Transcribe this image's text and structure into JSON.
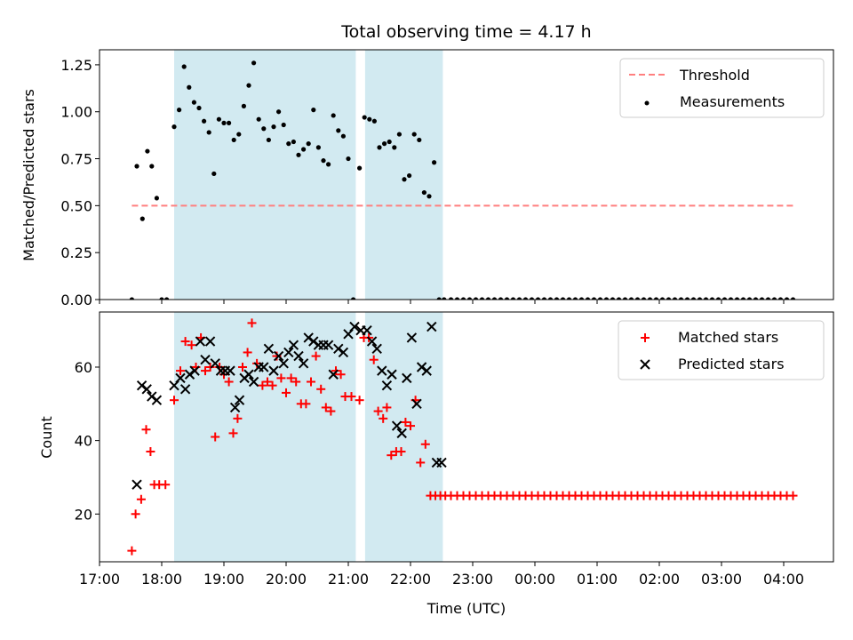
{
  "chart_data": {
    "title": "Total observing time = 4.17 h",
    "xlabel": "Time (UTC)",
    "x_ticks": [
      "17:00",
      "18:00",
      "19:00",
      "20:00",
      "21:00",
      "22:00",
      "23:00",
      "00:00",
      "01:00",
      "02:00",
      "03:00",
      "04:00"
    ],
    "x_range_hours": [
      17.0,
      28.8
    ],
    "shaded_intervals_hours": [
      [
        18.2,
        21.12
      ],
      [
        21.27,
        22.52
      ]
    ],
    "shade_color": "#add8e6",
    "panels": [
      {
        "type": "scatter",
        "ylabel": "Matched/Predicted stars",
        "ylim": [
          0,
          1.33
        ],
        "yticks": [
          "0.00",
          "0.25",
          "0.50",
          "0.75",
          "1.00",
          "1.25"
        ],
        "threshold": {
          "name": "Threshold",
          "value": 0.5,
          "x_range_hours": [
            17.52,
            28.2
          ],
          "color": "#ff7f7f"
        },
        "series": [
          {
            "name": "Measurements",
            "color": "#000000",
            "x": [
              17.52,
              17.6,
              17.69,
              17.77,
              17.84,
              17.92,
              18.0,
              18.08,
              18.2,
              18.28,
              18.36,
              18.44,
              18.52,
              18.6,
              18.68,
              18.76,
              18.84,
              18.92,
              19.0,
              19.08,
              19.16,
              19.24,
              19.32,
              19.4,
              19.48,
              19.56,
              19.64,
              19.72,
              19.8,
              19.88,
              19.96,
              20.04,
              20.12,
              20.2,
              20.28,
              20.36,
              20.44,
              20.52,
              20.6,
              20.68,
              20.76,
              20.84,
              20.92,
              21.0,
              21.08,
              21.18,
              21.26,
              21.34,
              21.42,
              21.5,
              21.58,
              21.66,
              21.74,
              21.82,
              21.9,
              21.98,
              22.06,
              22.14,
              22.22,
              22.3,
              22.38,
              22.46,
              22.54,
              22.65,
              22.75,
              22.85,
              22.95,
              23.05,
              23.15,
              23.25,
              23.35,
              23.45,
              23.55,
              23.65,
              23.75,
              23.85,
              23.95,
              24.05,
              24.15,
              24.25,
              24.35,
              24.45,
              24.55,
              24.65,
              24.75,
              24.85,
              24.95,
              25.05,
              25.15,
              25.25,
              25.35,
              25.45,
              25.55,
              25.65,
              25.75,
              25.85,
              25.95,
              26.05,
              26.15,
              26.25,
              26.35,
              26.45,
              26.55,
              26.65,
              26.75,
              26.85,
              26.95,
              27.05,
              27.15,
              27.25,
              27.35,
              27.45,
              27.55,
              27.65,
              27.75,
              27.85,
              27.95,
              28.05,
              28.15
            ],
            "y": [
              0.0,
              0.71,
              0.43,
              0.79,
              0.71,
              0.54,
              0.0,
              0.0,
              0.92,
              1.01,
              1.24,
              1.13,
              1.05,
              1.02,
              0.95,
              0.89,
              0.67,
              0.96,
              0.94,
              0.94,
              0.85,
              0.88,
              1.03,
              1.14,
              1.26,
              0.96,
              0.91,
              0.85,
              0.92,
              1.0,
              0.93,
              0.83,
              0.84,
              0.77,
              0.8,
              0.83,
              1.01,
              0.81,
              0.74,
              0.72,
              0.98,
              0.9,
              0.87,
              0.75,
              0.0,
              0.7,
              0.97,
              0.96,
              0.95,
              0.81,
              0.83,
              0.84,
              0.81,
              0.88,
              0.64,
              0.66,
              0.88,
              0.85,
              0.57,
              0.55,
              0.73,
              0.0,
              0.0,
              0.0,
              0.0,
              0.0,
              0.0,
              0.0,
              0.0,
              0.0,
              0.0,
              0.0,
              0.0,
              0.0,
              0.0,
              0.0,
              0.0,
              0.0,
              0.0,
              0.0,
              0.0,
              0.0,
              0.0,
              0.0,
              0.0,
              0.0,
              0.0,
              0.0,
              0.0,
              0.0,
              0.0,
              0.0,
              0.0,
              0.0,
              0.0,
              0.0,
              0.0,
              0.0,
              0.0,
              0.0,
              0.0,
              0.0,
              0.0,
              0.0,
              0.0,
              0.0,
              0.0,
              0.0,
              0.0,
              0.0,
              0.0,
              0.0,
              0.0,
              0.0,
              0.0,
              0.0,
              0.0,
              0.0,
              0.0
            ]
          }
        ],
        "legend": [
          {
            "label": "Threshold",
            "style": "dashed-line",
            "color": "#ff7f7f"
          },
          {
            "label": "Measurements",
            "style": "dot",
            "color": "#000000"
          }
        ]
      },
      {
        "type": "scatter",
        "ylabel": "Count",
        "ylim": [
          7,
          75
        ],
        "yticks": [
          "20",
          "40",
          "60"
        ],
        "series": [
          {
            "name": "Matched stars",
            "marker": "+",
            "color": "#ff0000",
            "x": [
              17.52,
              17.58,
              17.67,
              17.75,
              17.82,
              17.88,
              17.96,
              18.06,
              18.2,
              18.3,
              18.38,
              18.48,
              18.55,
              18.63,
              18.7,
              18.78,
              18.86,
              18.93,
              19.0,
              19.08,
              19.15,
              19.22,
              19.3,
              19.38,
              19.45,
              19.53,
              19.62,
              19.7,
              19.78,
              19.85,
              19.92,
              20.0,
              20.08,
              20.16,
              20.24,
              20.32,
              20.4,
              20.48,
              20.56,
              20.64,
              20.72,
              20.8,
              20.88,
              20.95,
              21.05,
              21.18,
              21.25,
              21.33,
              21.41,
              21.48,
              21.56,
              21.62,
              21.69,
              21.77,
              21.85,
              21.92,
              22.0,
              22.08,
              22.16,
              22.24,
              22.32,
              22.4,
              22.48,
              22.56,
              22.65,
              22.75,
              22.85,
              22.95,
              23.05,
              23.15,
              23.25,
              23.35,
              23.45,
              23.55,
              23.65,
              23.75,
              23.85,
              23.95,
              24.05,
              24.15,
              24.25,
              24.35,
              24.45,
              24.55,
              24.65,
              24.75,
              24.85,
              24.95,
              25.05,
              25.15,
              25.25,
              25.35,
              25.45,
              25.55,
              25.65,
              25.75,
              25.85,
              25.95,
              26.05,
              26.15,
              26.25,
              26.35,
              26.45,
              26.55,
              26.65,
              26.75,
              26.85,
              26.95,
              27.05,
              27.15,
              27.25,
              27.35,
              27.45,
              27.55,
              27.65,
              27.75,
              27.85,
              27.95,
              28.05,
              28.15
            ],
            "y": [
              10,
              20,
              24,
              43,
              37,
              28,
              28,
              28,
              51,
              59,
              67,
              66,
              60,
              68,
              59,
              60,
              41,
              60,
              58,
              56,
              42,
              46,
              60,
              64,
              72,
              61,
              55,
              56,
              55,
              63,
              57,
              53,
              57,
              56,
              50,
              50,
              56,
              63,
              54,
              49,
              48,
              59,
              58,
              52,
              52,
              51,
              68,
              68,
              62,
              48,
              46,
              49,
              36,
              37,
              37,
              45,
              44,
              51,
              34,
              39,
              25,
              25,
              25,
              25,
              25,
              25,
              25,
              25,
              25,
              25,
              25,
              25,
              25,
              25,
              25,
              25,
              25,
              25,
              25,
              25,
              25,
              25,
              25,
              25,
              25,
              25,
              25,
              25,
              25,
              25,
              25,
              25,
              25,
              25,
              25,
              25,
              25,
              25,
              25,
              25,
              25,
              25,
              25,
              25,
              25,
              25,
              25,
              25,
              25,
              25,
              25,
              25,
              25,
              25,
              25,
              25,
              25,
              25,
              25,
              25
            ]
          },
          {
            "name": "Predicted stars",
            "marker": "x",
            "color": "#000000",
            "x": [
              17.6,
              17.68,
              17.76,
              17.84,
              17.92,
              18.2,
              18.3,
              18.38,
              18.45,
              18.53,
              18.62,
              18.7,
              18.78,
              18.86,
              18.95,
              19.02,
              19.1,
              19.18,
              19.25,
              19.33,
              19.4,
              19.48,
              19.56,
              19.64,
              19.72,
              19.8,
              19.88,
              19.96,
              20.04,
              20.12,
              20.2,
              20.28,
              20.36,
              20.44,
              20.52,
              20.6,
              20.68,
              20.76,
              20.84,
              20.92,
              21.0,
              21.1,
              21.2,
              21.3,
              21.38,
              21.46,
              21.54,
              21.62,
              21.7,
              21.78,
              21.86,
              21.94,
              22.02,
              22.1,
              22.18,
              22.26,
              22.34,
              22.42,
              22.5
            ],
            "y": [
              28,
              55,
              54,
              52,
              51,
              55,
              57,
              54,
              58,
              59,
              67,
              62,
              67,
              61,
              59,
              59,
              59,
              49,
              51,
              57,
              58,
              56,
              60,
              60,
              65,
              59,
              63,
              61,
              64,
              66,
              63,
              61,
              68,
              67,
              66,
              66,
              66,
              58,
              65,
              64,
              69,
              71,
              70,
              70,
              67,
              65,
              59,
              55,
              58,
              44,
              42,
              57,
              68,
              50,
              60,
              59,
              71,
              34,
              34
            ]
          }
        ],
        "legend": [
          {
            "label": "Matched stars",
            "style": "plus",
            "color": "#ff0000"
          },
          {
            "label": "Predicted stars",
            "style": "cross",
            "color": "#000000"
          }
        ]
      }
    ]
  }
}
